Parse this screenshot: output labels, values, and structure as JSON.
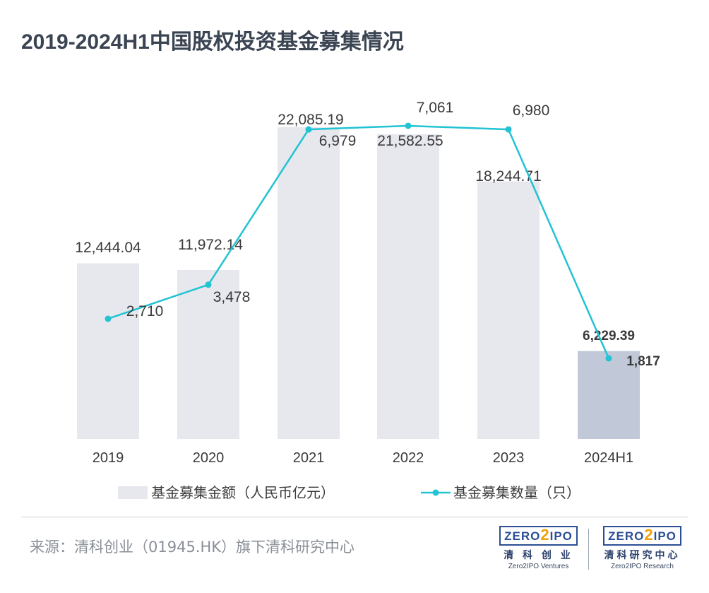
{
  "title": "2019-2024H1中国股权投资基金募集情况",
  "source": "来源：清科创业（01945.HK）旗下清科研究中心",
  "logos": [
    {
      "zero": "ZERO",
      "two": "2",
      "ipo": "IPO",
      "cn": "清 科 创 业",
      "en": "Zero2IPO Ventures"
    },
    {
      "zero": "ZERO",
      "two": "2",
      "ipo": "IPO",
      "cn": "清科研究中心",
      "en": "Zero2IPO Research"
    }
  ],
  "colors": {
    "bar": "#e6e8ee",
    "bar_highlight": "#c1c9d8",
    "line": "#22c3d3",
    "label": "#3a3a3a"
  },
  "chart_data": {
    "type": "bar",
    "categories": [
      "2019",
      "2020",
      "2021",
      "2022",
      "2023",
      "2024H1"
    ],
    "series": [
      {
        "name": "基金募集金额（人民币亿元）",
        "type": "bar",
        "values": [
          12444.04,
          11972.14,
          22085.19,
          21582.55,
          18244.71,
          6229.39
        ],
        "labels": [
          "12,444.04",
          "11,972.14",
          "22,085.19",
          "21,582.55",
          "18,244.71",
          "6,229.39"
        ]
      },
      {
        "name": "基金募集数量（只）",
        "type": "line",
        "values": [
          2710,
          3478,
          6979,
          7061,
          6980,
          1817
        ],
        "labels": [
          "2,710",
          "3,478",
          "6,979",
          "7,061",
          "6,980",
          "1,817"
        ]
      }
    ],
    "highlight_index": 5,
    "y_bar_range": [
      0,
      24000
    ],
    "y_line_range": [
      0,
      7600
    ],
    "legend_position": "bottom",
    "grid": false
  }
}
